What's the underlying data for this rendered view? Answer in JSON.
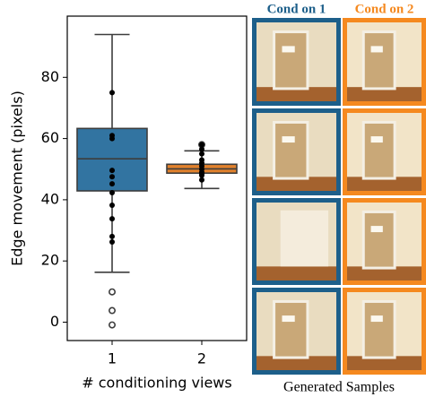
{
  "chart_data": {
    "type": "box",
    "x_label": "# conditioning views",
    "y_label": "Edge movement (pixels)",
    "categories": [
      "1",
      "2"
    ],
    "ylim": [
      -6,
      100
    ],
    "yticks": [
      0,
      20,
      40,
      60,
      80
    ],
    "boxes": [
      {
        "color": "#3274a1",
        "whislo": 16.3,
        "q1": 42.9,
        "median": 53.4,
        "q3": 63.3,
        "whishi": 94,
        "fliers": [
          9.9,
          3.8,
          -0.9
        ],
        "points": [
          75,
          61,
          60,
          49.6,
          47.5,
          45.2,
          42.3,
          38.2,
          33.8,
          28,
          26.2
        ]
      },
      {
        "color": "#e1812c",
        "whislo": 43.7,
        "q1": 48.7,
        "median": 50.1,
        "q3": 51.6,
        "whishi": 56,
        "fliers": [
          58
        ],
        "points": [
          58,
          56.5,
          55,
          53,
          52,
          51,
          50,
          49,
          48.5,
          48,
          46.5
        ]
      }
    ]
  },
  "samples": {
    "caption": "Generated Samples",
    "columns": [
      {
        "title": "Cond on 1",
        "color": "#1d5f8a"
      },
      {
        "title": "Cond on 2",
        "color": "#f5891f"
      }
    ]
  }
}
